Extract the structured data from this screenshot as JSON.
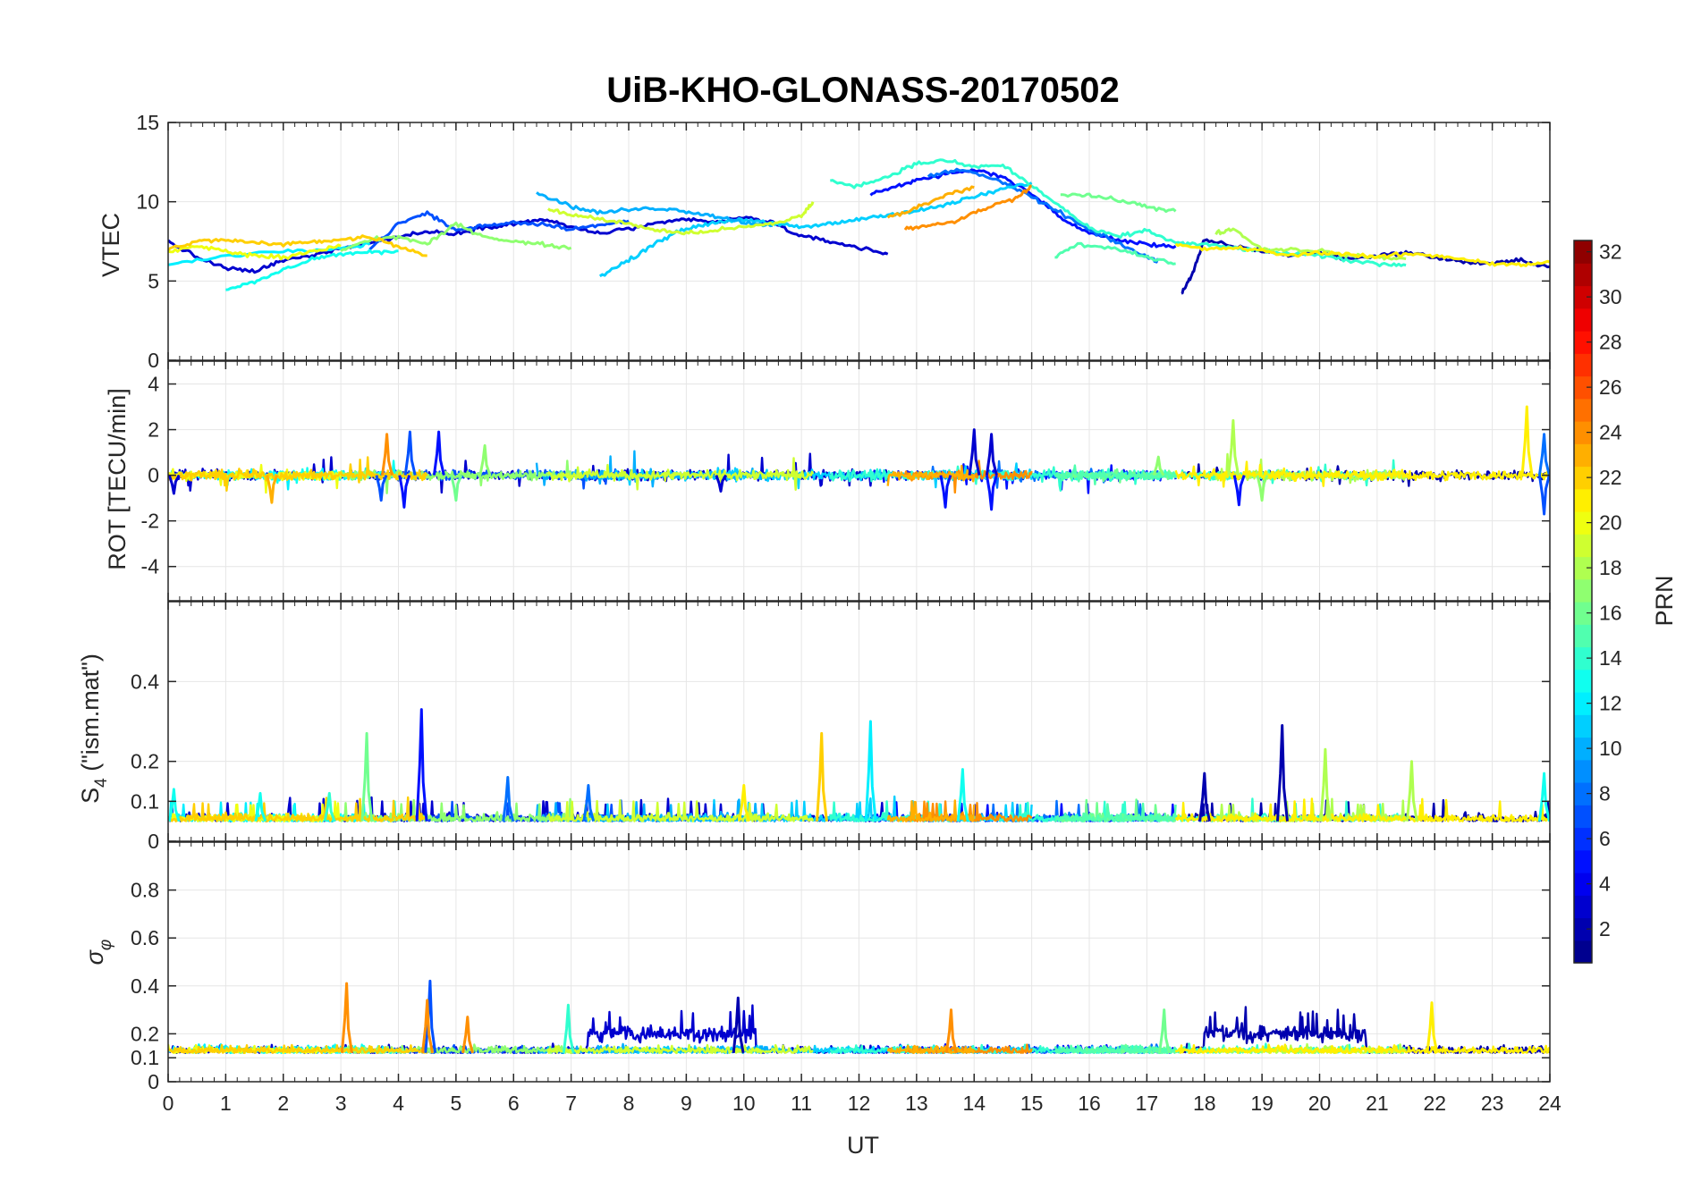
{
  "title": "UiB-KHO-GLONASS-20170502",
  "xlabel": "UT",
  "colorbar": {
    "label": "PRN",
    "colormap": "jet",
    "range": [
      1,
      32
    ],
    "ticks": [
      "2",
      "4",
      "6",
      "8",
      "10",
      "12",
      "14",
      "16",
      "18",
      "20",
      "22",
      "24",
      "26",
      "28",
      "30",
      "32"
    ]
  },
  "chart_data": [
    {
      "type": "line",
      "panel": "vtec",
      "ylabel": "VTEC",
      "xlim": [
        0,
        24
      ],
      "ylim": [
        0,
        15
      ],
      "xticks": [
        0,
        1,
        2,
        3,
        4,
        5,
        6,
        7,
        8,
        9,
        10,
        11,
        12,
        13,
        14,
        15,
        16,
        17,
        18,
        19,
        20,
        21,
        22,
        23,
        24
      ],
      "yticks": [
        0,
        5,
        10,
        15
      ],
      "ytick_labels": [
        "0",
        "5",
        "10",
        "15"
      ],
      "grid": true,
      "series": [
        {
          "prn": 3,
          "x": [
            0,
            0.5,
            1,
            1.5,
            2,
            2.5,
            3,
            3.5,
            4,
            4.5,
            5,
            5.5,
            6,
            6.5,
            7,
            7.5,
            8,
            8.5,
            9,
            9.5,
            10,
            10.5,
            11,
            11.5,
            12,
            12.5
          ],
          "y": [
            7.5,
            6.5,
            5.8,
            5.6,
            6.3,
            6.6,
            7.1,
            7.4,
            7.8,
            8.1,
            8.0,
            8.4,
            8.6,
            8.9,
            8.4,
            8.0,
            8.3,
            8.6,
            8.9,
            8.7,
            9.0,
            8.7,
            7.8,
            7.5,
            7.1,
            6.7
          ]
        },
        {
          "prn": 5,
          "x": [
            12.2,
            12.6,
            13,
            13.5,
            14,
            14.5,
            15,
            15.5,
            16,
            16.5,
            17,
            17.5
          ],
          "y": [
            10.5,
            10.9,
            11.4,
            11.7,
            12.0,
            11.6,
            10.5,
            9.0,
            8.0,
            7.6,
            7.3,
            7.2
          ]
        },
        {
          "prn": 2,
          "x": [
            17.6,
            17.8,
            18,
            18.5,
            19,
            19.5,
            20,
            20.5,
            21,
            21.5,
            22,
            22.5,
            23,
            23.5,
            24
          ],
          "y": [
            4.2,
            5.5,
            7.6,
            7.2,
            6.9,
            6.6,
            6.8,
            6.4,
            6.6,
            6.8,
            6.5,
            6.2,
            6.1,
            6.3,
            5.9
          ]
        },
        {
          "prn": 7,
          "x": [
            3.5,
            4,
            4.5,
            5,
            5.5,
            6,
            6.5,
            7,
            7.5,
            8
          ],
          "y": [
            7.0,
            8.6,
            9.3,
            8.2,
            8.5,
            8.7,
            8.6,
            8.3,
            8.5,
            8.8
          ]
        },
        {
          "prn": 8,
          "x": [
            13.2,
            13.8,
            14.5,
            15,
            15.5,
            16,
            16.5,
            17,
            17.2
          ],
          "y": [
            11.6,
            12.1,
            11.2,
            10.3,
            9.3,
            8.2,
            7.4,
            6.5,
            6.3
          ]
        },
        {
          "prn": 11,
          "x": [
            7.5,
            8,
            8.5,
            9,
            9.5,
            10,
            10.5,
            11,
            11.5,
            12,
            12.5,
            13,
            13.5,
            14,
            14.5,
            15
          ],
          "y": [
            5.3,
            6.3,
            7.5,
            8.3,
            8.7,
            8.9,
            8.6,
            8.4,
            8.6,
            8.9,
            9.2,
            9.4,
            9.8,
            10.3,
            10.8,
            11.2
          ]
        },
        {
          "prn": 12,
          "x": [
            0,
            1,
            2,
            3,
            3.5
          ],
          "y": [
            6.0,
            6.6,
            6.9,
            7.1,
            7.3
          ]
        },
        {
          "prn": 10,
          "x": [
            6.4,
            7,
            7.5,
            8,
            8.5,
            9,
            9.5,
            10,
            10.5
          ],
          "y": [
            10.6,
            9.7,
            9.3,
            9.5,
            9.6,
            9.4,
            9.1,
            8.7,
            8.5
          ]
        },
        {
          "prn": 13,
          "x": [
            1,
            1.5,
            2,
            2.5,
            3,
            3.5,
            4
          ],
          "y": [
            4.5,
            4.9,
            5.7,
            6.4,
            6.7,
            6.8,
            6.9
          ]
        },
        {
          "prn": 14,
          "x": [
            11.5,
            12,
            12.5,
            13,
            13.5,
            14,
            14.5,
            15,
            15.5,
            16,
            16.5,
            17,
            17.5,
            18,
            18.5,
            19,
            19.5,
            20,
            20.5,
            21,
            21.5
          ],
          "y": [
            11.3,
            11.0,
            11.6,
            12.4,
            12.6,
            12.2,
            12.3,
            11.0,
            9.7,
            8.3,
            7.8,
            8.2,
            7.4,
            7.3,
            7.1,
            6.9,
            6.7,
            6.6,
            6.3,
            6.1,
            6.0
          ]
        },
        {
          "prn": 16,
          "x": [
            15.5,
            16,
            16.5,
            17,
            17.5
          ],
          "y": [
            10.5,
            10.4,
            10.1,
            9.7,
            9.4
          ]
        },
        {
          "prn": 15,
          "x": [
            15.4,
            15.8,
            16.5,
            17,
            17.5
          ],
          "y": [
            6.5,
            7.3,
            7.0,
            6.5,
            6.1
          ]
        },
        {
          "prn": 17,
          "x": [
            3,
            3.5,
            4,
            4.5,
            5,
            5.5,
            6,
            6.5,
            7
          ],
          "y": [
            6.9,
            7.6,
            7.8,
            7.3,
            8.6,
            7.8,
            7.5,
            7.3,
            7.1
          ]
        },
        {
          "prn": 18,
          "x": [
            18.2,
            18.5,
            19,
            19.5,
            20,
            20.5,
            21,
            21.5
          ],
          "y": [
            8.0,
            8.3,
            7.0,
            7.0,
            6.9,
            6.6,
            6.5,
            6.4
          ]
        },
        {
          "prn": 19,
          "x": [
            6.6,
            7,
            7.5,
            8,
            8.5,
            9,
            9.5,
            10,
            10.5,
            11,
            11.2
          ],
          "y": [
            9.5,
            9.2,
            8.9,
            8.6,
            8.2,
            8.0,
            8.2,
            8.4,
            8.6,
            9.1,
            10.0
          ]
        },
        {
          "prn": 20,
          "x": [
            0,
            0.5,
            1,
            1.5,
            2,
            2.5,
            3
          ],
          "y": [
            6.8,
            7.2,
            6.9,
            6.6,
            6.5,
            6.9,
            7.2
          ]
        },
        {
          "prn": 21,
          "x": [
            17.5,
            18,
            18.5,
            19,
            19.5,
            20,
            20.5,
            21,
            21.5,
            22,
            22.5,
            23,
            23.5,
            24
          ],
          "y": [
            7.3,
            7.0,
            7.1,
            6.9,
            6.6,
            6.8,
            6.7,
            6.5,
            6.7,
            6.6,
            6.4,
            6.1,
            6.0,
            6.2
          ]
        },
        {
          "prn": 22,
          "x": [
            0,
            0.5,
            1,
            1.5,
            2,
            2.5,
            3,
            3.5,
            4,
            4.5
          ],
          "y": [
            7.0,
            7.5,
            7.6,
            7.4,
            7.3,
            7.5,
            7.6,
            7.8,
            7.2,
            6.6
          ]
        },
        {
          "prn": 24,
          "x": [
            12.8,
            13.2,
            13.7,
            14.2,
            14.7,
            15
          ],
          "y": [
            8.3,
            8.5,
            8.8,
            9.6,
            10.2,
            11.0
          ]
        },
        {
          "prn": 23,
          "x": [
            12.5,
            13,
            13.5,
            14
          ],
          "y": [
            9.0,
            9.6,
            10.4,
            10.9
          ]
        }
      ]
    },
    {
      "type": "line",
      "panel": "rot",
      "ylabel": "ROT [TECU/min]",
      "xlim": [
        0,
        24
      ],
      "ylim": [
        -5.5,
        5
      ],
      "yticks": [
        -4,
        -2,
        0,
        2,
        4
      ],
      "ytick_labels": [
        "-4",
        "-2",
        "0",
        "2",
        "4"
      ],
      "grid": true,
      "baseline": 0,
      "typical_amplitude": 0.3,
      "spikes": [
        {
          "x": 0.1,
          "y": -0.8,
          "prn": 3
        },
        {
          "x": 1.8,
          "y": -1.2,
          "prn": 23
        },
        {
          "x": 3.7,
          "y": -1.1,
          "prn": 7
        },
        {
          "x": 3.8,
          "y": 1.8,
          "prn": 24
        },
        {
          "x": 4.1,
          "y": -1.4,
          "prn": 5
        },
        {
          "x": 4.2,
          "y": 1.9,
          "prn": 7
        },
        {
          "x": 4.7,
          "y": 1.9,
          "prn": 5
        },
        {
          "x": 5.0,
          "y": -1.1,
          "prn": 16
        },
        {
          "x": 5.5,
          "y": 1.3,
          "prn": 17
        },
        {
          "x": 9.6,
          "y": -0.7,
          "prn": 3
        },
        {
          "x": 13.5,
          "y": -1.4,
          "prn": 5
        },
        {
          "x": 14.0,
          "y": 2.0,
          "prn": 3
        },
        {
          "x": 14.3,
          "y": 1.8,
          "prn": 3
        },
        {
          "x": 14.3,
          "y": -1.5,
          "prn": 5
        },
        {
          "x": 17.2,
          "y": 0.8,
          "prn": 17
        },
        {
          "x": 18.5,
          "y": 2.4,
          "prn": 18
        },
        {
          "x": 18.6,
          "y": -1.3,
          "prn": 5
        },
        {
          "x": 19.0,
          "y": -1.1,
          "prn": 17
        },
        {
          "x": 23.6,
          "y": 3.0,
          "prn": 21
        },
        {
          "x": 23.9,
          "y": 1.8,
          "prn": 8
        },
        {
          "x": 23.9,
          "y": -1.7,
          "prn": 7
        }
      ]
    },
    {
      "type": "line",
      "panel": "s4",
      "ylabel": "S_4 (\"ism.mat\")",
      "ylabel_main": "S",
      "ylabel_sub": "4",
      "ylabel_rest": " (\"ism.mat\")",
      "xlim": [
        0,
        24
      ],
      "ylim": [
        0,
        0.6
      ],
      "yticks": [
        0,
        0.1,
        0.2,
        0.4
      ],
      "ytick_labels": [
        "0",
        "0.1",
        "0.2",
        "0.4"
      ],
      "grid": true,
      "baseline": 0.05,
      "spikes": [
        {
          "x": 3.45,
          "y": 0.27,
          "prn": 16
        },
        {
          "x": 4.4,
          "y": 0.33,
          "prn": 5
        },
        {
          "x": 5.9,
          "y": 0.16,
          "prn": 8
        },
        {
          "x": 7.3,
          "y": 0.14,
          "prn": 8
        },
        {
          "x": 10.0,
          "y": 0.14,
          "prn": 21
        },
        {
          "x": 11.35,
          "y": 0.27,
          "prn": 22
        },
        {
          "x": 12.2,
          "y": 0.3,
          "prn": 12
        },
        {
          "x": 13.8,
          "y": 0.18,
          "prn": 13
        },
        {
          "x": 18.0,
          "y": 0.17,
          "prn": 2
        },
        {
          "x": 19.35,
          "y": 0.29,
          "prn": 2
        },
        {
          "x": 20.1,
          "y": 0.23,
          "prn": 18
        },
        {
          "x": 21.6,
          "y": 0.2,
          "prn": 18
        },
        {
          "x": 23.9,
          "y": 0.17,
          "prn": 13
        },
        {
          "x": 0.1,
          "y": 0.13,
          "prn": 13
        },
        {
          "x": 1.6,
          "y": 0.12,
          "prn": 13
        },
        {
          "x": 2.8,
          "y": 0.12,
          "prn": 14
        }
      ]
    },
    {
      "type": "line",
      "panel": "sigma_phi",
      "ylabel": "σ_φ",
      "ylabel_main": "σ",
      "ylabel_sub": "φ",
      "xlim": [
        0,
        24
      ],
      "ylim": [
        0,
        1
      ],
      "yticks": [
        0,
        0.1,
        0.2,
        0.4,
        0.6,
        0.8
      ],
      "ytick_labels": [
        "0",
        "0.1",
        "0.2",
        "0.4",
        "0.6",
        "0.8"
      ],
      "grid": true,
      "baseline": 0.12,
      "noisy_band_prn2": [
        [
          7.3,
          10.2
        ],
        [
          18.0,
          20.8
        ]
      ],
      "spikes": [
        {
          "x": 3.1,
          "y": 0.41,
          "prn": 24
        },
        {
          "x": 4.55,
          "y": 0.42,
          "prn": 7
        },
        {
          "x": 4.5,
          "y": 0.34,
          "prn": 24
        },
        {
          "x": 5.2,
          "y": 0.27,
          "prn": 24
        },
        {
          "x": 6.95,
          "y": 0.32,
          "prn": 14
        },
        {
          "x": 9.9,
          "y": 0.35,
          "prn": 2
        },
        {
          "x": 13.6,
          "y": 0.3,
          "prn": 24
        },
        {
          "x": 17.3,
          "y": 0.3,
          "prn": 16
        },
        {
          "x": 21.95,
          "y": 0.33,
          "prn": 21
        }
      ]
    }
  ]
}
